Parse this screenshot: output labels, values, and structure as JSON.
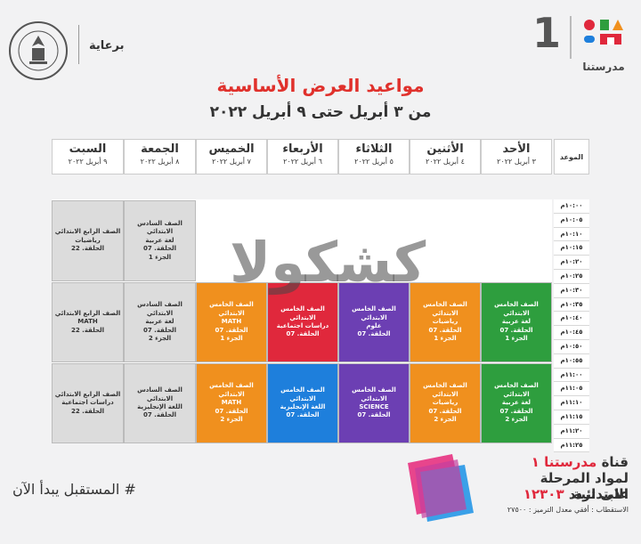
{
  "brand": {
    "number": "1",
    "name": "مدرستنا"
  },
  "sponsor": {
    "label": "برعاية"
  },
  "title": "مواعيد العرض الأساسية",
  "subtitle": "من ٣ أبريل حتى ٩ أبريل ٢٠٢٢",
  "time_header": "الموعد",
  "days": [
    {
      "name": "الأحد",
      "date": "٣ أبريل ٢٠٢٢"
    },
    {
      "name": "الأثنين",
      "date": "٤ أبريل ٢٠٢٢"
    },
    {
      "name": "الثلاثاء",
      "date": "٥ أبريل ٢٠٢٢"
    },
    {
      "name": "الأربعاء",
      "date": "٦ أبريل ٢٠٢٢"
    },
    {
      "name": "الخميس",
      "date": "٧ أبريل ٢٠٢٢"
    },
    {
      "name": "الجمعة",
      "date": "٨ أبريل ٢٠٢٢"
    },
    {
      "name": "السبت",
      "date": "٩ أبريل ٢٠٢٢"
    }
  ],
  "slots": [
    "١٠:٠٠م",
    "١٠:٠٥م",
    "١٠:١٠م",
    "١٠:١٥م",
    "١٠:٢٠م",
    "١٠:٢٥م",
    "١٠:٣٠م",
    "١٠:٣٥م",
    "١٠:٤٠م",
    "١٠:٤٥م",
    "١٠:٥٠م",
    "١٠:٥٥م",
    "١١:٠٠م",
    "١١:٠٥م",
    "١١:١٠م",
    "١١:١٥م",
    "١١:٢٠م",
    "١١:٢٥م"
  ],
  "cells": {
    "saturday_1": "الصف الرابع الابتدائي\nرياضيات\nالحلقة. 22",
    "friday_1": "الصف السادس الابتدائي\nلغة عربية\nالحلقة. 07\nالجزء 1",
    "sunday_2": "الصف الخامس الابتدائي\nلغة عربية\nالحلقة. 07\nالجزء 1",
    "monday_2": "الصف الخامس الابتدائي\nرياضيات\nالحلقة. 07\nالجزء 1",
    "tuesday_2": "الصف الخامس الابتدائي\nعلوم\nالحلقة. 07",
    "wednesday_2": "الصف الخامس الابتدائي\nدراسات اجتماعية\nالحلقة. 07",
    "thursday_2": "الصف الخامس الابتدائي\nMATH\nالحلقة. 07\nالجزء 1",
    "friday_2": "الصف السادس الابتدائي\nلغة عربية\nالحلقة. 07\nالجزء 2",
    "saturday_2": "الصف الرابع الابتدائي\nMATH\nالحلقة. 22",
    "sunday_3": "الصف الخامس الابتدائي\nلغة عربية\nالحلقة. 07\nالجزء 2",
    "monday_3": "الصف الخامس الابتدائي\nرياضيات\nالحلقة. 07\nالجزء 2",
    "tuesday_3": "الصف الخامس الابتدائي\nSCIENCE\nالحلقة. 07",
    "wednesday_3": "الصف الخامس الابتدائي\nاللغة الإنجليزية\nالحلقة. 07",
    "thursday_3": "الصف الخامس الابتدائي\nMATH\nالحلقة. 07\nالجزء 2",
    "friday_3": "الصف السادس الابتدائي\nاللغة الإنجليزية\nالحلقة. 07",
    "saturday_3": "الصف الرابع الابتدائي\nدراسات اجتماعية\nالحلقة. 22"
  },
  "watermark": {
    "dark": "كشكول",
    "red": "ا"
  },
  "footer": {
    "slogan": "# المستقبل يبدأ الآن",
    "channel_prefix": "قناة",
    "channel_name": "مدرستنا ١",
    "channel_line2": "لمواد المرحلة الابتدائية",
    "freq_prefix": "على تردد",
    "frequency": "١٢٣٠٣",
    "reception": "الاستقطاب : أفقي معدل الترميز : ٢٧٥٠٠"
  },
  "colors": {
    "green": "#2e9e3e",
    "orange": "#f0901e",
    "purple": "#6c3fb3",
    "red": "#e0283c",
    "blue": "#1e7fdc",
    "gray": "#dcdcdc",
    "title_red": "#e0312c"
  }
}
